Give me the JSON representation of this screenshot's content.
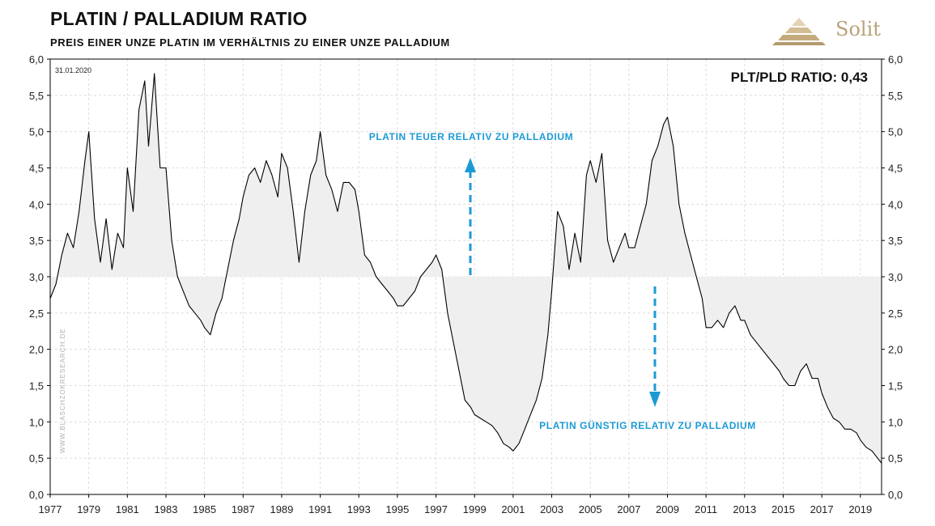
{
  "header": {
    "title": "PLATIN / PALLADIUM RATIO",
    "subtitle": "PREIS EINER UNZE PLATIN IM VERHÄLTNIS ZU EINER UNZE PALLADIUM",
    "logo_text": "Solit",
    "logo_color": "#b9a27a"
  },
  "chart_data": {
    "type": "area",
    "date_label": "31.01.2020",
    "ratio_label": "PLT/PLD RATIO: 0,43",
    "watermark": "WWW.BLASCHZOKRESEARCH.DE",
    "baseline": 3.0,
    "ylim": [
      0,
      6
    ],
    "yticks": [
      "0,0",
      "0,5",
      "1,0",
      "1,5",
      "2,0",
      "2,5",
      "3,0",
      "3,5",
      "4,0",
      "4,5",
      "5,0",
      "5,5",
      "6,0"
    ],
    "xlim": [
      1977.0,
      2020.1
    ],
    "xticks": [
      "1977",
      "1979",
      "1981",
      "1983",
      "1985",
      "1987",
      "1989",
      "1991",
      "1993",
      "1995",
      "1997",
      "1999",
      "2001",
      "2003",
      "2005",
      "2007",
      "2009",
      "2011",
      "2013",
      "2015",
      "2017",
      "2019"
    ],
    "grid": true,
    "annotations": {
      "expensive": "PLATIN TEUER RELATIV ZU PALLADIUM",
      "cheap": "PLATIN GÜNSTIG RELATIV ZU PALLADIUM"
    },
    "colors": {
      "line": "#000000",
      "fill": "#efefef",
      "annotation": "#1d9ad6",
      "grid": "#d6d6d6"
    },
    "series": [
      {
        "x": [
          1977.0,
          1977.3,
          1977.6,
          1977.9,
          1978.2,
          1978.5,
          1978.8,
          1979.0,
          1979.3,
          1979.6,
          1979.9,
          1980.2,
          1980.5,
          1980.8,
          1981.0,
          1981.3,
          1981.6,
          1981.9,
          1982.1,
          1982.4,
          1982.7,
          1983.0,
          1983.3,
          1983.6,
          1983.9,
          1984.2,
          1984.5,
          1984.8,
          1985.0,
          1985.3,
          1985.6,
          1985.9,
          1986.2,
          1986.5,
          1986.8,
          1987.0,
          1987.3,
          1987.6,
          1987.9,
          1988.2,
          1988.5,
          1988.8,
          1989.0,
          1989.3,
          1989.6,
          1989.9,
          1990.2,
          1990.5,
          1990.8,
          1991.0,
          1991.3,
          1991.6,
          1991.9,
          1992.2,
          1992.5,
          1992.8,
          1993.0,
          1993.3,
          1993.6,
          1993.9,
          1994.2,
          1994.5,
          1994.8,
          1995.0,
          1995.3,
          1995.6,
          1995.9,
          1996.2,
          1996.5,
          1996.8,
          1997.0,
          1997.3,
          1997.6,
          1997.9,
          1998.2,
          1998.5,
          1998.8,
          1999.0,
          1999.3,
          1999.6,
          1999.9,
          2000.2,
          2000.5,
          2000.8,
          2001.0,
          2001.3,
          2001.6,
          2001.9,
          2002.2,
          2002.5,
          2002.8,
          2003.0,
          2003.3,
          2003.6,
          2003.9,
          2004.2,
          2004.5,
          2004.8,
          2005.0,
          2005.3,
          2005.6,
          2005.9,
          2006.2,
          2006.5,
          2006.8,
          2007.0,
          2007.3,
          2007.6,
          2007.9,
          2008.2,
          2008.5,
          2008.8,
          2009.0,
          2009.3,
          2009.6,
          2009.9,
          2010.2,
          2010.5,
          2010.8,
          2011.0,
          2011.3,
          2011.6,
          2011.9,
          2012.2,
          2012.5,
          2012.8,
          2013.0,
          2013.3,
          2013.6,
          2013.9,
          2014.2,
          2014.5,
          2014.8,
          2015.0,
          2015.3,
          2015.6,
          2015.9,
          2016.2,
          2016.5,
          2016.8,
          2017.0,
          2017.3,
          2017.6,
          2017.9,
          2018.2,
          2018.5,
          2018.8,
          2019.0,
          2019.3,
          2019.6,
          2019.9,
          2020.1
        ],
        "values": [
          2.7,
          2.9,
          3.3,
          3.6,
          3.4,
          3.9,
          4.6,
          5.0,
          3.8,
          3.2,
          3.8,
          3.1,
          3.6,
          3.4,
          4.5,
          3.9,
          5.3,
          5.7,
          4.8,
          5.8,
          4.5,
          4.5,
          3.5,
          3.0,
          2.8,
          2.6,
          2.5,
          2.4,
          2.3,
          2.2,
          2.5,
          2.7,
          3.1,
          3.5,
          3.8,
          4.1,
          4.4,
          4.5,
          4.3,
          4.6,
          4.4,
          4.1,
          4.7,
          4.5,
          3.9,
          3.2,
          3.9,
          4.4,
          4.6,
          5.0,
          4.4,
          4.2,
          3.9,
          4.3,
          4.3,
          4.2,
          3.9,
          3.3,
          3.2,
          3.0,
          2.9,
          2.8,
          2.7,
          2.6,
          2.6,
          2.7,
          2.8,
          3.0,
          3.1,
          3.2,
          3.3,
          3.1,
          2.5,
          2.1,
          1.7,
          1.3,
          1.2,
          1.1,
          1.05,
          1.0,
          0.95,
          0.85,
          0.7,
          0.65,
          0.6,
          0.7,
          0.9,
          1.1,
          1.3,
          1.6,
          2.2,
          2.8,
          3.9,
          3.7,
          3.1,
          3.6,
          3.2,
          4.4,
          4.6,
          4.3,
          4.7,
          3.5,
          3.2,
          3.4,
          3.6,
          3.4,
          3.4,
          3.7,
          4.0,
          4.6,
          4.8,
          5.1,
          5.2,
          4.8,
          4.0,
          3.6,
          3.3,
          3.0,
          2.7,
          2.3,
          2.3,
          2.4,
          2.3,
          2.5,
          2.6,
          2.4,
          2.4,
          2.2,
          2.1,
          2.0,
          1.9,
          1.8,
          1.7,
          1.6,
          1.5,
          1.5,
          1.7,
          1.8,
          1.6,
          1.6,
          1.4,
          1.2,
          1.05,
          1.0,
          0.9,
          0.9,
          0.85,
          0.75,
          0.65,
          0.6,
          0.5,
          0.43
        ]
      }
    ]
  }
}
